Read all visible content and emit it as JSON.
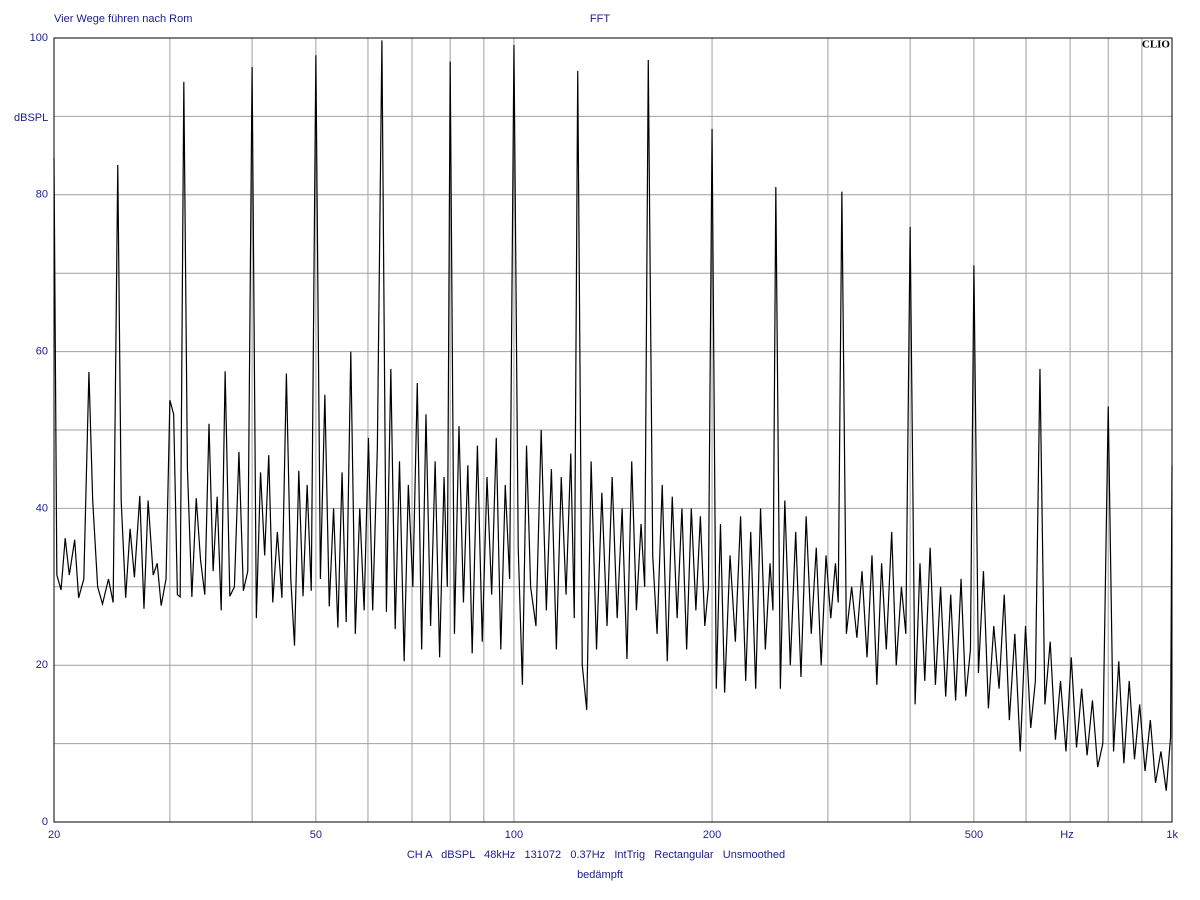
{
  "chart_data": {
    "type": "line",
    "title": "FFT",
    "subtitle": "Vier Wege führen nach Rom",
    "brand": "CLIO",
    "y_label": "dBSPL",
    "x_unit_label": "Hz",
    "footer": "CH A   dBSPL   48kHz   131072   0.37Hz   IntTrig   Rectangular   Unsmoothed",
    "footer_note": "bedämpft",
    "color": "#000000",
    "log_x": true,
    "grid": true,
    "xlim": [
      20,
      1000
    ],
    "ylim": [
      0,
      100
    ],
    "xticks": [
      20,
      50,
      100,
      200,
      500,
      {
        "value": 1000,
        "label": "1k"
      }
    ],
    "xminor": [
      30,
      40,
      60,
      70,
      80,
      90,
      300,
      400,
      600,
      700,
      800,
      900
    ],
    "yticks": [
      0,
      20,
      40,
      60,
      80,
      100
    ],
    "yminor": [
      10,
      30,
      50,
      70,
      90
    ],
    "x": [
      20,
      20.2,
      20.5,
      20.8,
      21.1,
      21.5,
      21.8,
      22.2,
      22.6,
      22.9,
      23.3,
      23.7,
      24.2,
      24.6,
      25,
      25.3,
      25.7,
      26.1,
      26.5,
      27,
      27.4,
      27.8,
      28.3,
      28.7,
      29.1,
      29.6,
      30,
      30.4,
      30.8,
      31.1,
      31.5,
      31.9,
      32.4,
      32.9,
      33.4,
      33.9,
      34.4,
      34.9,
      35.4,
      35.9,
      36.4,
      37,
      37.6,
      38.2,
      38.8,
      39.4,
      40,
      40.6,
      41.2,
      41.8,
      42.4,
      43,
      43.7,
      44.4,
      45.1,
      45.8,
      46.4,
      47.1,
      47.8,
      48.5,
      49.2,
      50,
      50.8,
      51.6,
      52.4,
      53.2,
      54,
      54.8,
      55.6,
      56.5,
      57.4,
      58.3,
      59.2,
      60.1,
      61,
      62,
      63,
      64,
      65,
      66,
      67,
      68.1,
      69.1,
      70.2,
      71.3,
      72.4,
      73.5,
      74.7,
      75.9,
      77.1,
      78.3,
      79.2,
      80,
      81.2,
      82.5,
      83.8,
      85.1,
      86.4,
      88,
      89.5,
      91,
      92.5,
      94,
      95.5,
      97,
      98.5,
      100,
      101.5,
      103,
      104.5,
      106,
      108,
      110,
      112,
      114,
      116,
      118,
      120,
      122,
      123.5,
      125,
      127,
      129,
      131,
      133.5,
      136,
      138.5,
      141,
      143.5,
      146,
      148.5,
      151,
      153.5,
      156,
      158,
      160,
      162.5,
      165,
      168,
      171,
      174,
      177,
      180,
      183,
      186,
      189,
      192,
      195,
      197.5,
      200,
      203,
      206,
      209,
      213,
      217,
      221,
      225,
      229,
      233,
      237,
      241,
      245,
      247.5,
      250,
      254,
      258,
      263,
      268,
      273,
      278,
      283,
      288,
      293,
      298,
      303,
      308,
      311,
      315,
      320,
      326,
      332,
      338,
      344,
      350,
      356,
      362,
      368,
      375,
      381,
      388,
      394,
      400,
      407,
      414,
      421,
      429,
      437,
      445,
      453,
      461,
      469,
      478,
      486,
      494,
      500,
      508,
      517,
      526,
      536,
      546,
      556,
      566,
      577,
      588,
      599,
      610,
      620,
      630,
      641,
      653,
      665,
      677,
      690,
      703,
      716,
      729,
      743,
      757,
      771,
      785,
      800,
      815,
      830,
      845,
      861,
      877,
      893,
      910,
      927,
      944,
      962,
      980,
      995,
      1000
    ],
    "values": [
      84.7,
      31.5,
      29.6,
      36.2,
      31.5,
      36,
      28.6,
      31,
      57.4,
      41,
      30,
      27.8,
      31,
      28,
      83.8,
      41,
      28.6,
      37.4,
      31.2,
      41.6,
      27.2,
      41,
      31.5,
      33,
      27.6,
      31,
      53.8,
      52,
      29,
      28.7,
      94.4,
      45,
      28.7,
      41.3,
      33.4,
      29,
      50.8,
      32,
      41.5,
      27,
      57.5,
      28.8,
      30,
      47.2,
      29.5,
      32,
      96.3,
      26,
      44.6,
      34,
      46.8,
      28,
      37,
      28.6,
      57.2,
      31,
      22.5,
      44.8,
      28.8,
      43,
      29.5,
      97.8,
      31,
      54.5,
      27.5,
      40,
      24.8,
      44.6,
      25.5,
      60,
      24,
      40,
      27,
      49,
      27,
      47.6,
      99.7,
      26.8,
      57.8,
      24.6,
      46,
      20.5,
      43,
      30,
      56,
      22,
      52,
      25,
      46,
      21,
      44,
      30,
      97,
      24,
      50.5,
      28,
      45.5,
      21.5,
      48,
      23,
      44,
      29,
      49,
      22,
      43,
      31,
      99.1,
      35,
      17.5,
      48,
      30,
      25,
      50,
      27,
      45,
      22,
      44,
      29,
      47,
      26,
      95.8,
      20,
      14.3,
      46,
      22,
      42,
      25,
      44,
      26,
      40,
      20.8,
      46,
      27,
      38,
      30,
      97.2,
      34,
      24,
      43,
      20.5,
      41.5,
      26,
      40,
      22,
      40,
      27,
      39,
      25,
      30,
      88.4,
      17,
      38,
      16.5,
      34,
      23,
      39,
      18,
      37,
      17,
      40,
      22,
      33,
      27,
      81,
      17,
      41,
      20,
      37,
      18.5,
      39,
      24,
      35,
      20,
      34,
      26,
      33,
      28,
      80.4,
      24,
      30,
      23.5,
      32,
      21,
      34,
      17.5,
      33,
      22,
      37,
      20,
      30,
      24,
      75.9,
      15,
      33,
      18,
      35,
      17.5,
      30,
      16,
      29,
      15.5,
      31,
      16,
      22,
      71,
      19,
      32,
      14.5,
      25,
      17,
      29,
      13,
      24,
      9,
      25,
      12,
      18,
      57.8,
      15,
      23,
      10.5,
      18,
      9,
      21,
      9.5,
      17,
      8.5,
      15.5,
      7,
      10,
      53,
      9,
      20.5,
      7.5,
      18,
      8,
      15,
      6.5,
      13,
      5,
      9,
      4,
      10.8,
      45.5
    ]
  }
}
